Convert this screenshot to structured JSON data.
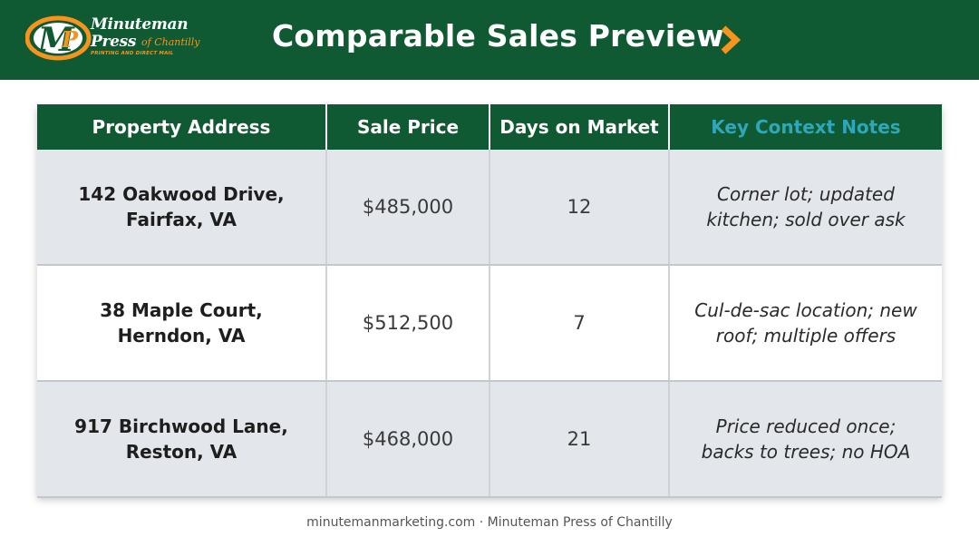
{
  "header": {
    "logo": {
      "line1": "Minuteman",
      "line2": "Press",
      "script": "of Chantilly",
      "tagline": "PRINTING AND DIRECT MAIL",
      "brand_green": "#0f5a32",
      "brand_orange": "#f7941d"
    },
    "title": "Comparable Sales Preview",
    "chevron_icon": "chevron-right-icon",
    "chevron_color": "#f7941d"
  },
  "table": {
    "columns": [
      "Property Address",
      "Sale Price",
      "Days on Market",
      "Key Context Notes"
    ],
    "accent_header_color": "#2fa7b8",
    "rows": [
      {
        "address_line1": "142 Oakwood Drive,",
        "address_line2": "Fairfax, VA",
        "price": "$485,000",
        "days": "12",
        "notes_line1": "Corner lot; updated",
        "notes_line2": "kitchen; sold over ask"
      },
      {
        "address_line1": "38 Maple Court,",
        "address_line2": "Herndon, VA",
        "price": "$512,500",
        "days": "7",
        "notes_line1": "Cul-de-sac location; new",
        "notes_line2": "roof; multiple offers"
      },
      {
        "address_line1": "917 Birchwood Lane,",
        "address_line2": "Reston, VA",
        "price": "$468,000",
        "days": "21",
        "notes_line1": "Price reduced once;",
        "notes_line2": "backs to trees; no HOA"
      }
    ]
  },
  "footer": {
    "text": "minutemanmarketing.com · Minuteman Press of Chantilly"
  }
}
